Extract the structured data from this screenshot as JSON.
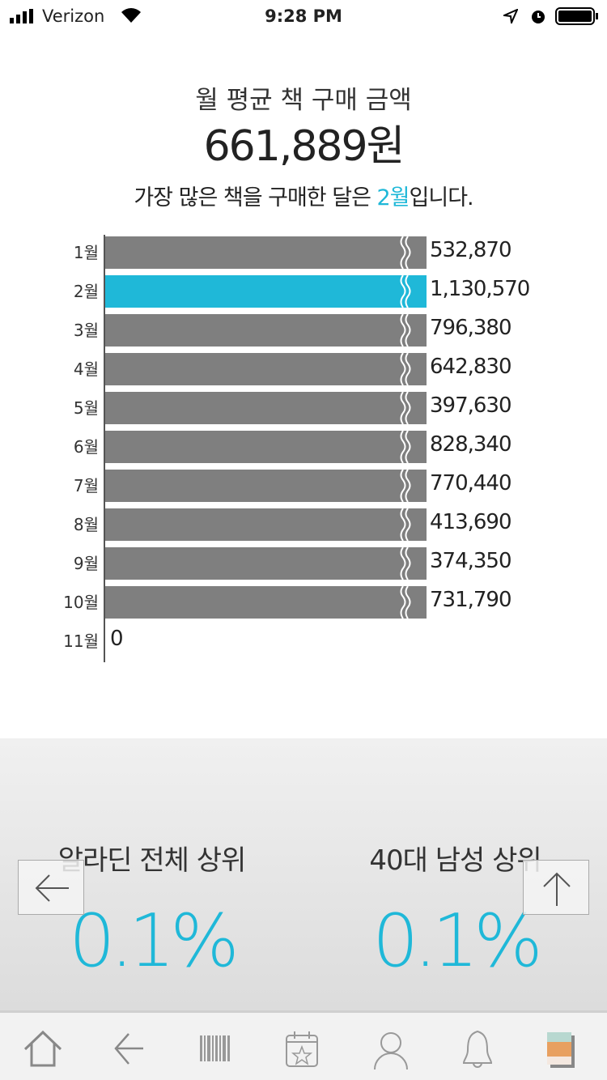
{
  "status_bar": {
    "carrier": "Verizon",
    "time": "9:28 PM"
  },
  "header": {
    "title": "월 평균 책 구매 금액",
    "total": "661,889원",
    "subtitle_prefix": "가장 많은 책을 구매한 달은 ",
    "subtitle_highlight": "2월",
    "subtitle_suffix": "입니다."
  },
  "chart_data": {
    "type": "bar",
    "orientation": "horizontal",
    "axis_break": true,
    "categories": [
      "1월",
      "2월",
      "3월",
      "4월",
      "5월",
      "6월",
      "7월",
      "8월",
      "9월",
      "10월",
      "11월"
    ],
    "values": [
      532870,
      1130570,
      796380,
      642830,
      397630,
      828340,
      770440,
      413690,
      374350,
      731790,
      0
    ],
    "value_labels": [
      "532,870",
      "1,130,570",
      "796,380",
      "642,830",
      "397,630",
      "828,340",
      "770,440",
      "413,690",
      "374,350",
      "731,790",
      "0"
    ],
    "highlight_index": 1,
    "colors": {
      "bar": "#7f7f7f",
      "highlight": "#1fb8d8"
    }
  },
  "ranking": [
    {
      "label": "알라딘 전체 상위",
      "value": "0.1%"
    },
    {
      "label": "40대 남성 상위",
      "value": "0.1%"
    }
  ],
  "nav": {
    "back": "arrow-left-icon",
    "top": "arrow-up-icon"
  },
  "tabbar": [
    "home-icon",
    "back-icon",
    "barcode-icon",
    "calendar-star-icon",
    "person-icon",
    "bell-icon",
    "book-cover-icon"
  ]
}
